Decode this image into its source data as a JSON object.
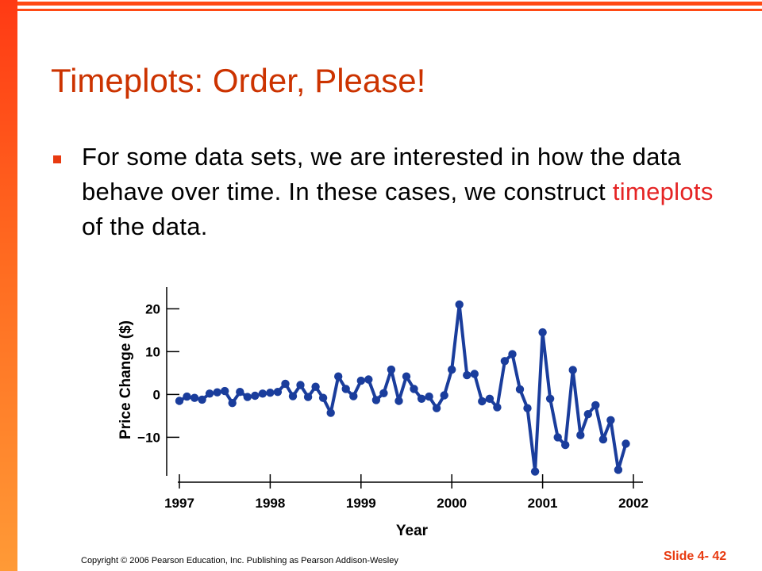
{
  "slide": {
    "title": "Timeplots: Order, Please!",
    "bullet_part1": "For some data sets, we are interested in how the data behave over time. In these cases, we construct ",
    "bullet_highlight": "timeplots",
    "bullet_part2": " of the data.",
    "copyright": "Copyright © 2006 Pearson Education, Inc. Publishing as Pearson Addison-Wesley",
    "slide_number": "Slide 4- 42",
    "accent_color": "#e83a10",
    "title_color": "#cc3300",
    "highlight_color": "#e52424",
    "line_color": "#1a3d9c"
  },
  "chart_data": {
    "type": "line",
    "xlabel": "Year",
    "ylabel": "Price Change ($)",
    "xlim": [
      1997,
      2002
    ],
    "ylim": [
      -19,
      21
    ],
    "xticks": [
      "1997",
      "1998",
      "1999",
      "2000",
      "2001",
      "2002"
    ],
    "yticks": [
      "20",
      "10",
      "0",
      "−10"
    ],
    "ytick_values": [
      20,
      10,
      0,
      -10
    ],
    "grid": false,
    "series": [
      {
        "x": [
          1997.0,
          1997.083,
          1997.167,
          1997.25,
          1997.333,
          1997.417,
          1997.5,
          1997.583,
          1997.667,
          1997.75,
          1997.833,
          1997.917,
          1998.0,
          1998.083,
          1998.167,
          1998.25,
          1998.333,
          1998.417,
          1998.5,
          1998.583,
          1998.667,
          1998.75,
          1998.833,
          1998.917,
          1999.0,
          1999.083,
          1999.167,
          1999.25,
          1999.333,
          1999.417,
          1999.5,
          1999.583,
          1999.667,
          1999.75,
          1999.833,
          1999.917,
          2000.0,
          2000.083,
          2000.167,
          2000.25,
          2000.333,
          2000.417,
          2000.5,
          2000.583,
          2000.667,
          2000.75,
          2000.833,
          2000.917,
          2001.0,
          2001.083,
          2001.167,
          2001.25,
          2001.333,
          2001.417,
          2001.5,
          2001.583,
          2001.667,
          2001.75,
          2001.833,
          2001.917
        ],
        "y": [
          -1.5,
          -0.5,
          -0.8,
          -1.2,
          0.2,
          0.5,
          0.8,
          -2.0,
          0.6,
          -0.6,
          -0.3,
          0.2,
          0.4,
          0.6,
          2.5,
          -0.4,
          2.2,
          -0.6,
          1.8,
          -0.8,
          -4.3,
          4.2,
          1.3,
          -0.4,
          3.2,
          3.5,
          -1.3,
          0.3,
          5.8,
          -1.5,
          4.2,
          1.3,
          -1.0,
          -0.5,
          -3.2,
          -0.2,
          5.8,
          21.0,
          4.5,
          4.8,
          -1.6,
          -1.0,
          -3.0,
          7.8,
          9.4,
          1.2,
          -3.2,
          -18.0,
          14.5,
          -1.0,
          -10.0,
          -11.8,
          5.7,
          -9.5,
          -4.6,
          -2.5,
          -10.5,
          -6.0,
          -17.6,
          -11.5
        ]
      }
    ]
  }
}
